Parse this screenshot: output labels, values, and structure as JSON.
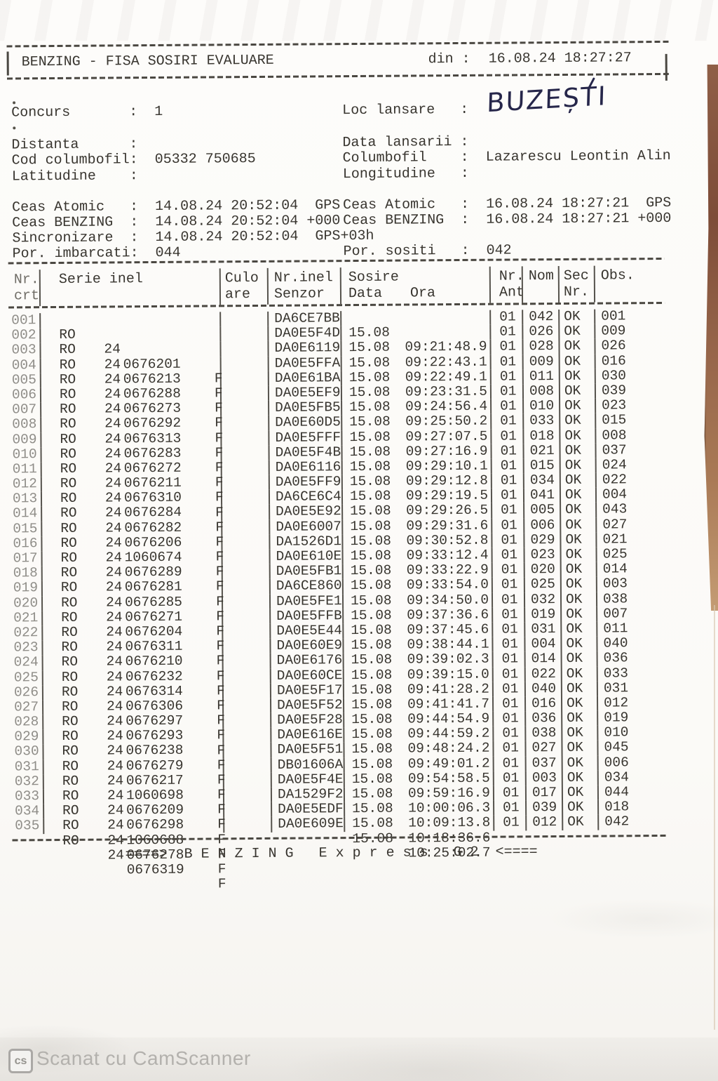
{
  "header": {
    "title": "BENZING - FISA SOSIRI EVALUARE",
    "din_label": "din :",
    "datetime": "16.08.24 18:27:27"
  },
  "info": {
    "top": [
      {
        "l": "Concurs       :",
        "lv": "1",
        "r": "Loc lansare   :",
        "rv": ""
      }
    ],
    "mid": [
      {
        "l": "Distanta      :",
        "lv": "",
        "r": "Data lansarii :",
        "rv": ""
      },
      {
        "l": "Cod columbofil:",
        "lv": "05332 750685",
        "r": "Columbofil    :",
        "rv": "Lazarescu Leontin Alin"
      },
      {
        "l": "Latitudine    :",
        "lv": "",
        "r": "Longitudine   :",
        "rv": ""
      }
    ],
    "clock": [
      {
        "l": "Ceas Atomic   :",
        "lv": "14.08.24 20:52:04  GPS",
        "r": "Ceas Atomic   :",
        "rv": "16.08.24 18:27:21  GPS"
      },
      {
        "l": "Ceas BENZING  :",
        "lv": "14.08.24 20:52:04 +000",
        "r": "Ceas BENZING  :",
        "rv": "16.08.24 18:27:21 +000"
      },
      {
        "l": "Sincronizare  :",
        "lv": "14.08.24 20:52:04  GPS+03h",
        "r": "",
        "rv": ""
      },
      {
        "l": "Por. imbarcati:",
        "lv": "044",
        "r": "Por. sositi   :",
        "rv": "042"
      }
    ],
    "handwritten_location": "BUZEȘTI"
  },
  "table": {
    "columns": {
      "c1a": "Nr.",
      "c1b": "crt",
      "c2": "Serie inel",
      "c3a": "Culo",
      "c3b": "are",
      "c4a": "Nr.inel",
      "c4b": "Senzor",
      "c5a": "Sosire",
      "c5_data": "Data",
      "c5_ora": "Ora",
      "c6a": "Nr.",
      "c6b": "Ant",
      "c7": "Nom",
      "c8a": "Sec",
      "c8b": "Nr.",
      "c9": "Obs."
    },
    "rows": [
      {
        "nr": "001",
        "tara": "RO",
        "an": "24",
        "serie": "0676201",
        "sex": "F",
        "senzor": "DA6CE7BB",
        "data": "15.08",
        "ora": "09:21:48.9",
        "ant": "01",
        "nom": "042",
        "sec": "OK",
        "obs": "001"
      },
      {
        "nr": "002",
        "tara": "RO",
        "an": "24",
        "serie": "0676213",
        "sex": "F",
        "senzor": "DA0E5F4D",
        "data": "15.08",
        "ora": "09:22:43.1",
        "ant": "01",
        "nom": "026",
        "sec": "OK",
        "obs": "009"
      },
      {
        "nr": "003",
        "tara": "RO",
        "an": "24",
        "serie": "0676288",
        "sex": "F",
        "senzor": "DA0E6119",
        "data": "15.08",
        "ora": "09:22:49.1",
        "ant": "01",
        "nom": "028",
        "sec": "OK",
        "obs": "026"
      },
      {
        "nr": "004",
        "tara": "RO",
        "an": "24",
        "serie": "0676273",
        "sex": "F",
        "senzor": "DA0E5FFA",
        "data": "15.08",
        "ora": "09:23:31.5",
        "ant": "01",
        "nom": "009",
        "sec": "OK",
        "obs": "016"
      },
      {
        "nr": "005",
        "tara": "RO",
        "an": "24",
        "serie": "0676292",
        "sex": "F",
        "senzor": "DA0E61BA",
        "data": "15.08",
        "ora": "09:24:56.4",
        "ant": "01",
        "nom": "011",
        "sec": "OK",
        "obs": "030"
      },
      {
        "nr": "006",
        "tara": "RO",
        "an": "24",
        "serie": "0676313",
        "sex": "F",
        "senzor": "DA0E5EF9",
        "data": "15.08",
        "ora": "09:25:50.2",
        "ant": "01",
        "nom": "008",
        "sec": "OK",
        "obs": "039"
      },
      {
        "nr": "007",
        "tara": "RO",
        "an": "24",
        "serie": "0676283",
        "sex": "F",
        "senzor": "DA0E5FB5",
        "data": "15.08",
        "ora": "09:27:07.5",
        "ant": "01",
        "nom": "010",
        "sec": "OK",
        "obs": "023"
      },
      {
        "nr": "008",
        "tara": "RO",
        "an": "24",
        "serie": "0676272",
        "sex": "F",
        "senzor": "DA0E60D5",
        "data": "15.08",
        "ora": "09:27:16.9",
        "ant": "01",
        "nom": "033",
        "sec": "OK",
        "obs": "015"
      },
      {
        "nr": "009",
        "tara": "RO",
        "an": "24",
        "serie": "0676211",
        "sex": "F",
        "senzor": "DA0E5FFF",
        "data": "15.08",
        "ora": "09:29:10.1",
        "ant": "01",
        "nom": "018",
        "sec": "OK",
        "obs": "008"
      },
      {
        "nr": "010",
        "tara": "RO",
        "an": "24",
        "serie": "0676310",
        "sex": "F",
        "senzor": "DA0E5F4B",
        "data": "15.08",
        "ora": "09:29:12.8",
        "ant": "01",
        "nom": "021",
        "sec": "OK",
        "obs": "037"
      },
      {
        "nr": "011",
        "tara": "RO",
        "an": "24",
        "serie": "0676284",
        "sex": "F",
        "senzor": "DA0E6116",
        "data": "15.08",
        "ora": "09:29:19.5",
        "ant": "01",
        "nom": "015",
        "sec": "OK",
        "obs": "024"
      },
      {
        "nr": "012",
        "tara": "RO",
        "an": "24",
        "serie": "0676282",
        "sex": "F",
        "senzor": "DA0E5FF9",
        "data": "15.08",
        "ora": "09:29:26.5",
        "ant": "01",
        "nom": "034",
        "sec": "OK",
        "obs": "022"
      },
      {
        "nr": "013",
        "tara": "RO",
        "an": "24",
        "serie": "0676206",
        "sex": "F",
        "senzor": "DA6CE6C4",
        "data": "15.08",
        "ora": "09:29:31.6",
        "ant": "01",
        "nom": "041",
        "sec": "OK",
        "obs": "004"
      },
      {
        "nr": "014",
        "tara": "RO",
        "an": "24",
        "serie": "1060674",
        "sex": "F",
        "senzor": "DA0E5E92",
        "data": "15.08",
        "ora": "09:30:52.8",
        "ant": "01",
        "nom": "005",
        "sec": "OK",
        "obs": "043"
      },
      {
        "nr": "015",
        "tara": "RO",
        "an": "24",
        "serie": "0676289",
        "sex": "F",
        "senzor": "DA0E6007",
        "data": "15.08",
        "ora": "09:33:12.4",
        "ant": "01",
        "nom": "006",
        "sec": "OK",
        "obs": "027"
      },
      {
        "nr": "016",
        "tara": "RO",
        "an": "24",
        "serie": "0676281",
        "sex": "F",
        "senzor": "DA1526D1",
        "data": "15.08",
        "ora": "09:33:22.9",
        "ant": "01",
        "nom": "029",
        "sec": "OK",
        "obs": "021"
      },
      {
        "nr": "017",
        "tara": "RO",
        "an": "24",
        "serie": "0676285",
        "sex": "F",
        "senzor": "DA0E610E",
        "data": "15.08",
        "ora": "09:33:54.0",
        "ant": "01",
        "nom": "023",
        "sec": "OK",
        "obs": "025"
      },
      {
        "nr": "018",
        "tara": "RO",
        "an": "24",
        "serie": "0676271",
        "sex": "F",
        "senzor": "DA0E5FB1",
        "data": "15.08",
        "ora": "09:34:50.0",
        "ant": "01",
        "nom": "020",
        "sec": "OK",
        "obs": "014"
      },
      {
        "nr": "019",
        "tara": "RO",
        "an": "24",
        "serie": "0676204",
        "sex": "F",
        "senzor": "DA6CE860",
        "data": "15.08",
        "ora": "09:37:36.6",
        "ant": "01",
        "nom": "025",
        "sec": "OK",
        "obs": "003"
      },
      {
        "nr": "020",
        "tara": "RO",
        "an": "24",
        "serie": "0676311",
        "sex": "F",
        "senzor": "DA0E5FE1",
        "data": "15.08",
        "ora": "09:37:45.6",
        "ant": "01",
        "nom": "032",
        "sec": "OK",
        "obs": "038"
      },
      {
        "nr": "021",
        "tara": "RO",
        "an": "24",
        "serie": "0676210",
        "sex": "F",
        "senzor": "DA0E5FFB",
        "data": "15.08",
        "ora": "09:38:44.1",
        "ant": "01",
        "nom": "019",
        "sec": "OK",
        "obs": "007"
      },
      {
        "nr": "022",
        "tara": "RO",
        "an": "24",
        "serie": "0676232",
        "sex": "F",
        "senzor": "DA0E5E44",
        "data": "15.08",
        "ora": "09:39:02.3",
        "ant": "01",
        "nom": "031",
        "sec": "OK",
        "obs": "011"
      },
      {
        "nr": "023",
        "tara": "RO",
        "an": "24",
        "serie": "0676314",
        "sex": "F",
        "senzor": "DA0E60E9",
        "data": "15.08",
        "ora": "09:39:15.0",
        "ant": "01",
        "nom": "004",
        "sec": "OK",
        "obs": "040"
      },
      {
        "nr": "024",
        "tara": "RO",
        "an": "24",
        "serie": "0676306",
        "sex": "F",
        "senzor": "DA0E6176",
        "data": "15.08",
        "ora": "09:41:28.2",
        "ant": "01",
        "nom": "014",
        "sec": "OK",
        "obs": "036"
      },
      {
        "nr": "025",
        "tara": "RO",
        "an": "24",
        "serie": "0676297",
        "sex": "F",
        "senzor": "DA0E60CE",
        "data": "15.08",
        "ora": "09:41:41.7",
        "ant": "01",
        "nom": "022",
        "sec": "OK",
        "obs": "033"
      },
      {
        "nr": "026",
        "tara": "RO",
        "an": "24",
        "serie": "0676293",
        "sex": "F",
        "senzor": "DA0E5F17",
        "data": "15.08",
        "ora": "09:44:54.9",
        "ant": "01",
        "nom": "040",
        "sec": "OK",
        "obs": "031"
      },
      {
        "nr": "027",
        "tara": "RO",
        "an": "24",
        "serie": "0676238",
        "sex": "F",
        "senzor": "DA0E5F52",
        "data": "15.08",
        "ora": "09:44:59.2",
        "ant": "01",
        "nom": "016",
        "sec": "OK",
        "obs": "012"
      },
      {
        "nr": "028",
        "tara": "RO",
        "an": "24",
        "serie": "0676279",
        "sex": "F",
        "senzor": "DA0E5F28",
        "data": "15.08",
        "ora": "09:48:24.2",
        "ant": "01",
        "nom": "036",
        "sec": "OK",
        "obs": "019"
      },
      {
        "nr": "029",
        "tara": "RO",
        "an": "24",
        "serie": "0676217",
        "sex": "F",
        "senzor": "DA0E616E",
        "data": "15.08",
        "ora": "09:49:01.2",
        "ant": "01",
        "nom": "038",
        "sec": "OK",
        "obs": "010"
      },
      {
        "nr": "030",
        "tara": "RO",
        "an": "24",
        "serie": "1060698",
        "sex": "F",
        "senzor": "DA0E5F51",
        "data": "15.08",
        "ora": "09:54:58.5",
        "ant": "01",
        "nom": "027",
        "sec": "OK",
        "obs": "045"
      },
      {
        "nr": "031",
        "tara": "RO",
        "an": "24",
        "serie": "0676209",
        "sex": "F",
        "senzor": "DB01606A",
        "data": "15.08",
        "ora": "09:59:16.9",
        "ant": "01",
        "nom": "037",
        "sec": "OK",
        "obs": "006"
      },
      {
        "nr": "032",
        "tara": "RO",
        "an": "24",
        "serie": "0676298",
        "sex": "F",
        "senzor": "DA0E5F4E",
        "data": "15.08",
        "ora": "10:00:06.3",
        "ant": "01",
        "nom": "003",
        "sec": "OK",
        "obs": "034"
      },
      {
        "nr": "033",
        "tara": "RO",
        "an": "24",
        "serie": "1060688",
        "sex": "F",
        "senzor": "DA1529F2",
        "data": "15.08",
        "ora": "10:09:13.8",
        "ant": "01",
        "nom": "017",
        "sec": "OK",
        "obs": "044"
      },
      {
        "nr": "034",
        "tara": "RO",
        "an": "24",
        "serie": "0676278",
        "sex": "F",
        "senzor": "DA0E5EDF",
        "data": "15.08",
        "ora": "10:18:36.6",
        "ant": "01",
        "nom": "039",
        "sec": "OK",
        "obs": "018"
      },
      {
        "nr": "035",
        "tara": "RO",
        "an": "24",
        "serie": "0676319",
        "sex": "F",
        "senzor": "DA0E609E",
        "data": "15.08",
        "ora": "10:25:02.7",
        "ant": "01",
        "nom": "012",
        "sec": "OK",
        "obs": "042"
      }
    ]
  },
  "footer": "====>  B E N Z I N G   E x p r e s s   G 2  <====",
  "camscanner": {
    "badge": "cs",
    "label": "Scanat cu CamScanner"
  },
  "colors": {
    "ink": "#38352f",
    "handwriting_ink": "#26264a",
    "edge_brown": "#7d4c38",
    "camscanner_gray": "#b3b1ad"
  }
}
